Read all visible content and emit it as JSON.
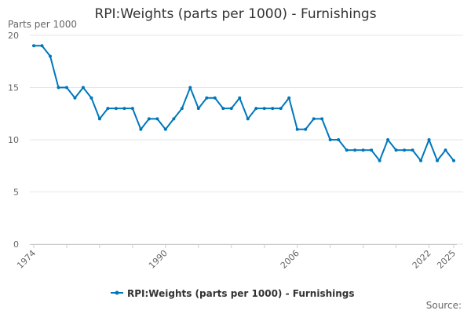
{
  "chart_data": {
    "type": "line",
    "title": "RPI:Weights (parts per 1000) - Furnishings",
    "ylabel": "Parts per 1000",
    "xlabel": "",
    "x": [
      1974,
      1975,
      1976,
      1977,
      1978,
      1979,
      1980,
      1981,
      1982,
      1983,
      1984,
      1985,
      1986,
      1987,
      1988,
      1989,
      1990,
      1991,
      1992,
      1993,
      1994,
      1995,
      1996,
      1997,
      1998,
      1999,
      2000,
      2001,
      2002,
      2003,
      2004,
      2005,
      2006,
      2007,
      2008,
      2009,
      2010,
      2011,
      2012,
      2013,
      2014,
      2015,
      2016,
      2017,
      2018,
      2019,
      2020,
      2021,
      2022,
      2023,
      2024,
      2025
    ],
    "series": [
      {
        "name": "RPI:Weights (parts per 1000) - Furnishings",
        "color": "#0077bb",
        "values": [
          19,
          19,
          18,
          15,
          15,
          14,
          15,
          14,
          12,
          13,
          13,
          13,
          13,
          11,
          12,
          12,
          11,
          12,
          13,
          15,
          13,
          14,
          14,
          13,
          13,
          14,
          12,
          13,
          13,
          13,
          13,
          14,
          11,
          11,
          12,
          12,
          10,
          10,
          9,
          9,
          9,
          9,
          8,
          10,
          9,
          9,
          9,
          8,
          10,
          8,
          9,
          8
        ]
      }
    ],
    "xticks": [
      "1974",
      "1990",
      "2006",
      "2022",
      "2025"
    ],
    "yticks": [
      "0",
      "5",
      "10",
      "15",
      "20"
    ],
    "ylim": [
      0,
      20
    ],
    "xlim": [
      1974,
      2025
    ],
    "grid": true,
    "legend": "bottom"
  },
  "source_label": "Source:"
}
